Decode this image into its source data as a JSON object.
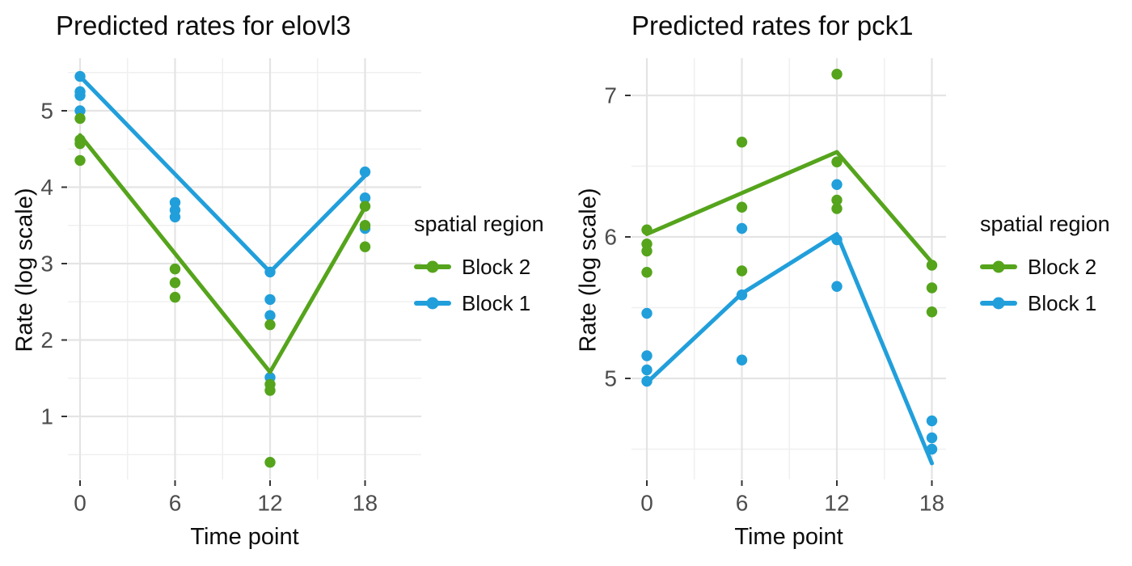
{
  "figure": {
    "background": "#ffffff",
    "colors": {
      "block2_green": "#55a41c",
      "block1_blue": "#219fdb",
      "grid_major": "#e4e4e4",
      "grid_minor": "#f0f0f0",
      "tick_mark": "#333333",
      "tick_label": "#4d4d4d",
      "text": "#0d0d0d"
    }
  },
  "chart_data": [
    {
      "type": "scatter",
      "title": "Predicted rates for elovl3",
      "xlabel": "Time point",
      "ylabel": "Rate (log scale)",
      "legend_title": "spatial region",
      "legend_position": "right",
      "grid": true,
      "x_ticks": [
        0,
        6,
        12,
        18
      ],
      "x_minor": [
        3,
        9,
        15
      ],
      "y_ticks": [
        1,
        2,
        3,
        4,
        5
      ],
      "y_minor": [
        0.5,
        1.5,
        2.5,
        3.5,
        4.5,
        5.5
      ],
      "xlim": [
        -0.8,
        21.5
      ],
      "ylim": [
        0.15,
        5.66
      ],
      "series": [
        {
          "name": "Block 2",
          "color_key": "block2_green",
          "points": [
            {
              "x": 0,
              "y": 4.9
            },
            {
              "x": 0,
              "y": 4.62
            },
            {
              "x": 0,
              "y": 4.57
            },
            {
              "x": 0,
              "y": 4.35
            },
            {
              "x": 6,
              "y": 2.93
            },
            {
              "x": 6,
              "y": 2.75
            },
            {
              "x": 6,
              "y": 2.56
            },
            {
              "x": 12,
              "y": 2.2
            },
            {
              "x": 12,
              "y": 1.42
            },
            {
              "x": 12,
              "y": 1.34
            },
            {
              "x": 12,
              "y": 0.4
            },
            {
              "x": 18,
              "y": 3.75
            },
            {
              "x": 18,
              "y": 3.5
            },
            {
              "x": 18,
              "y": 3.22
            }
          ],
          "line": {
            "x": [
              0,
              6,
              12,
              18
            ],
            "y": [
              4.68,
              3.13,
              1.58,
              3.74
            ]
          }
        },
        {
          "name": "Block 1",
          "color_key": "block1_blue",
          "points": [
            {
              "x": 0,
              "y": 5.45
            },
            {
              "x": 0,
              "y": 5.25
            },
            {
              "x": 0,
              "y": 5.2
            },
            {
              "x": 0,
              "y": 5.0
            },
            {
              "x": 6,
              "y": 3.8
            },
            {
              "x": 6,
              "y": 3.7
            },
            {
              "x": 6,
              "y": 3.61
            },
            {
              "x": 12,
              "y": 2.89
            },
            {
              "x": 12,
              "y": 2.53
            },
            {
              "x": 12,
              "y": 2.32
            },
            {
              "x": 12,
              "y": 1.51
            },
            {
              "x": 18,
              "y": 4.2
            },
            {
              "x": 18,
              "y": 3.86
            },
            {
              "x": 18,
              "y": 3.46
            }
          ],
          "line": {
            "x": [
              0,
              6,
              12,
              18
            ],
            "y": [
              5.45,
              4.17,
              2.89,
              4.15
            ]
          }
        }
      ]
    },
    {
      "type": "scatter",
      "title": "Predicted rates for pck1",
      "xlabel": "Time point",
      "ylabel": "Rate (log scale)",
      "legend_title": "spatial region",
      "legend_position": "right",
      "grid": true,
      "x_ticks": [
        0,
        6,
        12,
        18
      ],
      "x_minor": [
        3,
        9,
        15
      ],
      "y_ticks": [
        5,
        6,
        7
      ],
      "y_minor": [
        4.5,
        5.5,
        6.5
      ],
      "xlim": [
        -0.8,
        19.0
      ],
      "ylim": [
        4.27,
        7.25
      ],
      "series": [
        {
          "name": "Block 2",
          "color_key": "block2_green",
          "points": [
            {
              "x": 0,
              "y": 6.05
            },
            {
              "x": 0,
              "y": 5.95
            },
            {
              "x": 0,
              "y": 5.9
            },
            {
              "x": 0,
              "y": 5.75
            },
            {
              "x": 6,
              "y": 6.67
            },
            {
              "x": 6,
              "y": 6.21
            },
            {
              "x": 6,
              "y": 5.76
            },
            {
              "x": 12,
              "y": 7.15
            },
            {
              "x": 12,
              "y": 6.53
            },
            {
              "x": 12,
              "y": 6.26
            },
            {
              "x": 12,
              "y": 6.2
            },
            {
              "x": 18,
              "y": 5.8
            },
            {
              "x": 18,
              "y": 5.64
            },
            {
              "x": 18,
              "y": 5.47
            }
          ],
          "line": {
            "x": [
              0,
              6,
              12,
              18
            ],
            "y": [
              6.02,
              6.31,
              6.6,
              5.82
            ]
          }
        },
        {
          "name": "Block 1",
          "color_key": "block1_blue",
          "points": [
            {
              "x": 0,
              "y": 5.46
            },
            {
              "x": 0,
              "y": 5.16
            },
            {
              "x": 0,
              "y": 5.06
            },
            {
              "x": 0,
              "y": 4.98
            },
            {
              "x": 6,
              "y": 6.06
            },
            {
              "x": 6,
              "y": 5.59
            },
            {
              "x": 6,
              "y": 5.13
            },
            {
              "x": 12,
              "y": 6.37
            },
            {
              "x": 12,
              "y": 5.98
            },
            {
              "x": 12,
              "y": 5.65
            },
            {
              "x": 18,
              "y": 4.7
            },
            {
              "x": 18,
              "y": 4.58
            },
            {
              "x": 18,
              "y": 4.5
            }
          ],
          "line": {
            "x": [
              0,
              6,
              12,
              18
            ],
            "y": [
              4.97,
              5.6,
              6.02,
              4.4
            ]
          }
        }
      ]
    }
  ]
}
